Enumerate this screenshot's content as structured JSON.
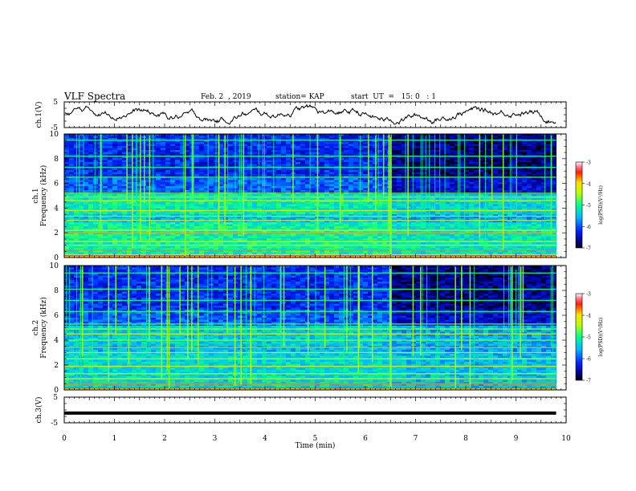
{
  "header": {
    "title": "VLF Spectra",
    "date": "Feb. 2  , 2019",
    "station": "station= KAP",
    "start": "start  UT  =   15: 0   : 1"
  },
  "chart_data": [
    {
      "type": "line",
      "panel": "ch1-waveform",
      "ylabel": "ch.1(V)",
      "ylim": [
        -5,
        5
      ],
      "yticks": [
        "5",
        "-5"
      ],
      "xlim": [
        0,
        10
      ]
    },
    {
      "type": "heatmap",
      "panel": "ch1-spectrogram",
      "ylabel": "ch.1\nFrequency  (kHz)",
      "xlim": [
        0,
        10
      ],
      "ylim": [
        0,
        10
      ],
      "yticks": [
        "0",
        "2",
        "4",
        "6",
        "8",
        "10"
      ],
      "colorbar": {
        "label": "log(PSD)(V²/Hz)",
        "range": [
          -7,
          -3
        ],
        "ticks": [
          "-3",
          "-4",
          "-5",
          "-6",
          "-7"
        ]
      },
      "data_end_min": 9.8,
      "transition_min": 6.5
    },
    {
      "type": "heatmap",
      "panel": "ch2-spectrogram",
      "ylabel": "ch.2\nFrequency  (kHz)",
      "xlim": [
        0,
        10
      ],
      "ylim": [
        0,
        10
      ],
      "yticks": [
        "0",
        "2",
        "4",
        "6",
        "8",
        "10"
      ],
      "colorbar": {
        "label": "log(PSD)(V²/Hz)",
        "range": [
          -7,
          -3
        ],
        "ticks": [
          "-3",
          "-4",
          "-5",
          "-6",
          "-7"
        ]
      },
      "data_end_min": 9.8,
      "transition_min": 6.5
    },
    {
      "type": "line",
      "panel": "ch3-waveform",
      "ylabel": "ch.3(V)",
      "ylim": [
        -5,
        5
      ],
      "yticks": [
        "5",
        "-5"
      ],
      "xlim": [
        0,
        10
      ],
      "level_v": -1.2
    }
  ],
  "xaxis": {
    "label": "Time  (min)",
    "ticks": [
      "0",
      "1",
      "2",
      "3",
      "4",
      "5",
      "6",
      "7",
      "8",
      "9",
      "10"
    ]
  }
}
